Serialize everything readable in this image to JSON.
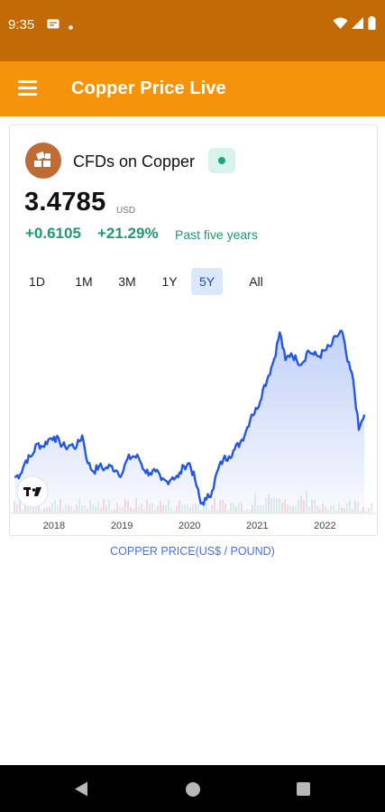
{
  "status_bar": {
    "time": "9:35",
    "left_icons": [
      "message-notification-icon",
      "dot-icon"
    ],
    "right_icons": [
      "wifi-icon",
      "signal-icon",
      "battery-icon"
    ]
  },
  "app_bar": {
    "title": "Copper Price Live",
    "menu_icon": "hamburger-menu-icon",
    "color": "#f5940b"
  },
  "asset": {
    "name": "CFDs on Copper",
    "logo_icon": "copper-blocks-icon",
    "status_icon": "market-open-dot-icon",
    "price": "3.4785",
    "unit": "USD",
    "change_abs": "+0.6105",
    "change_pct": "+21.29%",
    "change_period": "Past five years",
    "change_color": "#1e9a6f"
  },
  "range_tabs": [
    {
      "label": "1D",
      "active": false
    },
    {
      "label": "1M",
      "active": false
    },
    {
      "label": "3M",
      "active": false
    },
    {
      "label": "1Y",
      "active": false
    },
    {
      "label": "5Y",
      "active": true
    },
    {
      "label": "All",
      "active": false
    }
  ],
  "chart_data": {
    "type": "area",
    "series": [
      {
        "x": [
          "2017-06",
          "2017-07",
          "2017-08",
          "2017-09",
          "2017-10",
          "2017-11",
          "2017-12",
          "2018-01",
          "2018-02",
          "2018-03",
          "2018-04",
          "2018-05",
          "2018-06",
          "2018-07",
          "2018-08",
          "2018-09",
          "2018-10",
          "2018-11",
          "2018-12",
          "2019-01",
          "2019-02",
          "2019-03",
          "2019-04",
          "2019-05",
          "2019-06",
          "2019-07",
          "2019-08",
          "2019-09",
          "2019-10",
          "2019-11",
          "2019-12",
          "2020-01",
          "2020-02",
          "2020-03",
          "2020-04",
          "2020-05",
          "2020-06",
          "2020-07",
          "2020-08",
          "2020-09",
          "2020-10",
          "2020-11",
          "2020-12",
          "2021-01",
          "2021-02",
          "2021-03",
          "2021-04",
          "2021-05",
          "2021-06",
          "2021-07",
          "2021-08",
          "2021-09",
          "2021-10",
          "2021-11",
          "2021-12",
          "2022-01",
          "2022-02",
          "2022-03",
          "2022-04",
          "2022-05",
          "2022-06",
          "2022-07",
          "2022-08"
        ],
        "values": [
          2.62,
          2.66,
          2.86,
          2.92,
          3.1,
          3.06,
          3.16,
          3.2,
          3.12,
          3.05,
          3.08,
          3.06,
          3.22,
          2.82,
          2.7,
          2.78,
          2.74,
          2.78,
          2.72,
          2.66,
          2.88,
          2.92,
          2.9,
          2.72,
          2.68,
          2.7,
          2.58,
          2.56,
          2.62,
          2.62,
          2.78,
          2.82,
          2.58,
          2.24,
          2.3,
          2.42,
          2.72,
          2.88,
          2.92,
          3.02,
          3.12,
          3.28,
          3.52,
          3.6,
          3.88,
          4.08,
          4.32,
          4.7,
          4.3,
          4.4,
          4.3,
          4.26,
          4.44,
          4.38,
          4.36,
          4.44,
          4.5,
          4.64,
          4.72,
          4.28,
          4.02,
          3.3,
          3.52
        ]
      }
    ],
    "x_tick_labels": [
      "2018",
      "2019",
      "2020",
      "2021",
      "2022"
    ],
    "ylim": [
      2.1,
      4.9
    ],
    "grid": false,
    "legend": "none",
    "line_color": "#2557e3",
    "volume_bars": true
  },
  "chart_badge_icon": "tradingview-logo-icon",
  "caption": "COPPER PRICE(US$ / POUND)",
  "nav_bar": {
    "icons": [
      "back-icon",
      "home-icon",
      "recent-apps-icon"
    ]
  }
}
